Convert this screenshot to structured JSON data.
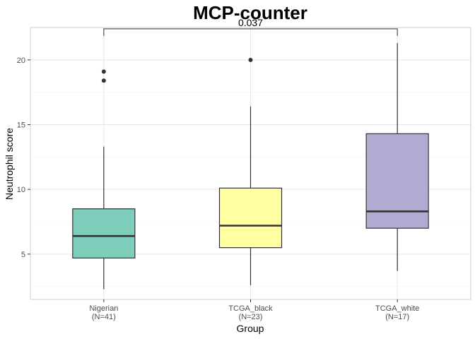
{
  "chart_data": {
    "type": "box",
    "title": "MCP-counter",
    "xlabel": "Group",
    "ylabel": "Neutrophil score",
    "ylim": [
      1.5,
      22.5
    ],
    "yticks": [
      5,
      10,
      15,
      20
    ],
    "grid": true,
    "legend": "none",
    "categories": [
      {
        "name": "Nigerian",
        "n_label": "(N=41)",
        "color": "#7fcdbb",
        "whisker_low": 2.3,
        "q1": 4.7,
        "median": 6.4,
        "q3": 8.5,
        "whisker_high": 13.3,
        "outliers": [
          18.4,
          19.1
        ]
      },
      {
        "name": "TCGA_black",
        "n_label": "(N=23)",
        "color": "#ffffa1",
        "whisker_low": 2.6,
        "q1": 5.5,
        "median": 7.2,
        "q3": 10.1,
        "whisker_high": 16.4,
        "outliers": [
          20.0
        ]
      },
      {
        "name": "TCGA_white",
        "n_label": "(N=17)",
        "color": "#b0abd3",
        "whisker_low": 3.7,
        "q1": 7.0,
        "median": 8.3,
        "q3": 14.3,
        "whisker_high": 21.3,
        "outliers": []
      }
    ],
    "annotations": [
      {
        "from": "Nigerian",
        "to": "TCGA_white",
        "label": "0.037",
        "y": 22.4
      }
    ]
  }
}
